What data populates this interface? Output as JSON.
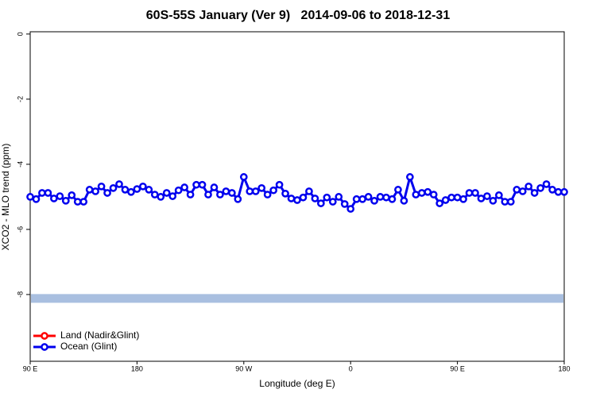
{
  "chart_data": {
    "type": "line",
    "title": "60S-55S January (Ver 9)   2014-09-06 to 2018-12-31",
    "x_label": "Longitude (deg E)",
    "y_label": "XCO2 - MLO trend (ppm)",
    "xlim": [
      90,
      540
    ],
    "ylim": [
      -10.05,
      0.07
    ],
    "xticks": [
      {
        "value": 90,
        "label": "90 E"
      },
      180,
      {
        "value": 270,
        "label": "90 W"
      },
      {
        "value": 360,
        "label": "0"
      },
      {
        "value": 450,
        "label": "90 E"
      },
      {
        "value": 540,
        "label": "180"
      }
    ],
    "yticks": [
      0,
      -2,
      -4,
      -6,
      -8
    ],
    "x": [
      90,
      95,
      100,
      105,
      110,
      115,
      120,
      125,
      130,
      135,
      140,
      145,
      150,
      155,
      160,
      165,
      170,
      175,
      180,
      185,
      190,
      195,
      200,
      205,
      210,
      215,
      220,
      225,
      230,
      235,
      240,
      245,
      250,
      255,
      260,
      265,
      270,
      275,
      280,
      285,
      290,
      295,
      300,
      305,
      310,
      315,
      320,
      325,
      330,
      335,
      340,
      345,
      350,
      355,
      360,
      365,
      370,
      375,
      380,
      385,
      390,
      395,
      400,
      405,
      410,
      415,
      420,
      425,
      430,
      435,
      440,
      445,
      450,
      455,
      460,
      465,
      470,
      475,
      480,
      485,
      490,
      495,
      500,
      505,
      510,
      515,
      520,
      525,
      530,
      535,
      540
    ],
    "series": [
      {
        "name": "Ocean (Glint)",
        "color": "#0000ee",
        "values": [
          -5.0,
          -5.07,
          -4.88,
          -4.88,
          -5.05,
          -4.98,
          -5.12,
          -4.95,
          -5.15,
          -5.15,
          -4.78,
          -4.83,
          -4.68,
          -4.88,
          -4.73,
          -4.61,
          -4.78,
          -4.85,
          -4.76,
          -4.68,
          -4.78,
          -4.93,
          -5.0,
          -4.88,
          -4.98,
          -4.8,
          -4.71,
          -4.93,
          -4.63,
          -4.63,
          -4.93,
          -4.71,
          -4.93,
          -4.83,
          -4.88,
          -5.07,
          -4.39,
          -4.83,
          -4.83,
          -4.73,
          -4.93,
          -4.8,
          -4.63,
          -4.9,
          -5.05,
          -5.1,
          -5.02,
          -4.83,
          -5.05,
          -5.2,
          -5.02,
          -5.15,
          -5.0,
          -5.22,
          -5.37,
          -5.07,
          -5.07,
          -5.0,
          -5.12,
          -5.0,
          -5.02,
          -5.07,
          -4.78,
          -5.12,
          -4.39,
          -4.93,
          -4.88,
          -4.85,
          -4.93,
          -5.2,
          -5.1,
          -5.02,
          -5.02,
          -5.07,
          -4.88,
          -4.88,
          -5.05,
          -4.98,
          -5.12,
          -4.95,
          -5.15,
          -5.15,
          -4.78,
          -4.83,
          -4.68,
          -4.88,
          -4.73,
          -4.61,
          -4.78,
          -4.85,
          -4.85
        ]
      }
    ],
    "legend": [
      {
        "name": "Land (Nadir&Glint)",
        "color": "#ff0000"
      },
      {
        "name": "Ocean (Glint)",
        "color": "#0000ee"
      }
    ],
    "reference_band": {
      "y": -8.12,
      "color": "#a9bfe0"
    }
  }
}
